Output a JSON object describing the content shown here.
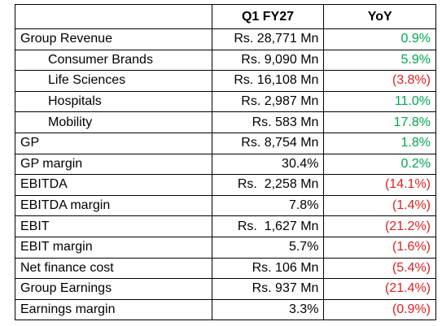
{
  "header": {
    "label": "",
    "q1": "Q1 FY27",
    "yoy": "YoY"
  },
  "rows": [
    [
      "Group Revenue",
      "Rs. 28,771 Mn",
      "0.9%"
    ],
    [
      "Consumer Brands",
      "Rs. 9,090 Mn",
      "5.9%"
    ],
    [
      "Life Sciences",
      "Rs. 16,108 Mn",
      "(3.8%)"
    ],
    [
      "Hospitals",
      "Rs. 2,987 Mn",
      "11.0%"
    ],
    [
      "Mobility",
      "Rs. 583 Mn",
      "17.8%"
    ],
    [
      "GP",
      "Rs. 8,754 Mn",
      "1.8%"
    ],
    [
      "GP margin",
      "30.4%",
      "0.2%"
    ],
    [
      "EBITDA",
      "Rs.  2,258 Mn",
      "(14.1%)"
    ],
    [
      "EBITDA margin",
      "7.8%",
      "(1.4%)"
    ],
    [
      "EBIT",
      "Rs.  1,627 Mn",
      "(21.2%)"
    ],
    [
      "EBIT margin",
      "5.7%",
      "(1.6%)"
    ],
    [
      "Net finance cost",
      "Rs. 106 Mn",
      "(5.4%)"
    ],
    [
      "Group Earnings",
      "Rs. 937 Mn",
      "(21.4%)"
    ],
    [
      "Earnings margin",
      "3.3%",
      "(0.9%)"
    ]
  ]
}
